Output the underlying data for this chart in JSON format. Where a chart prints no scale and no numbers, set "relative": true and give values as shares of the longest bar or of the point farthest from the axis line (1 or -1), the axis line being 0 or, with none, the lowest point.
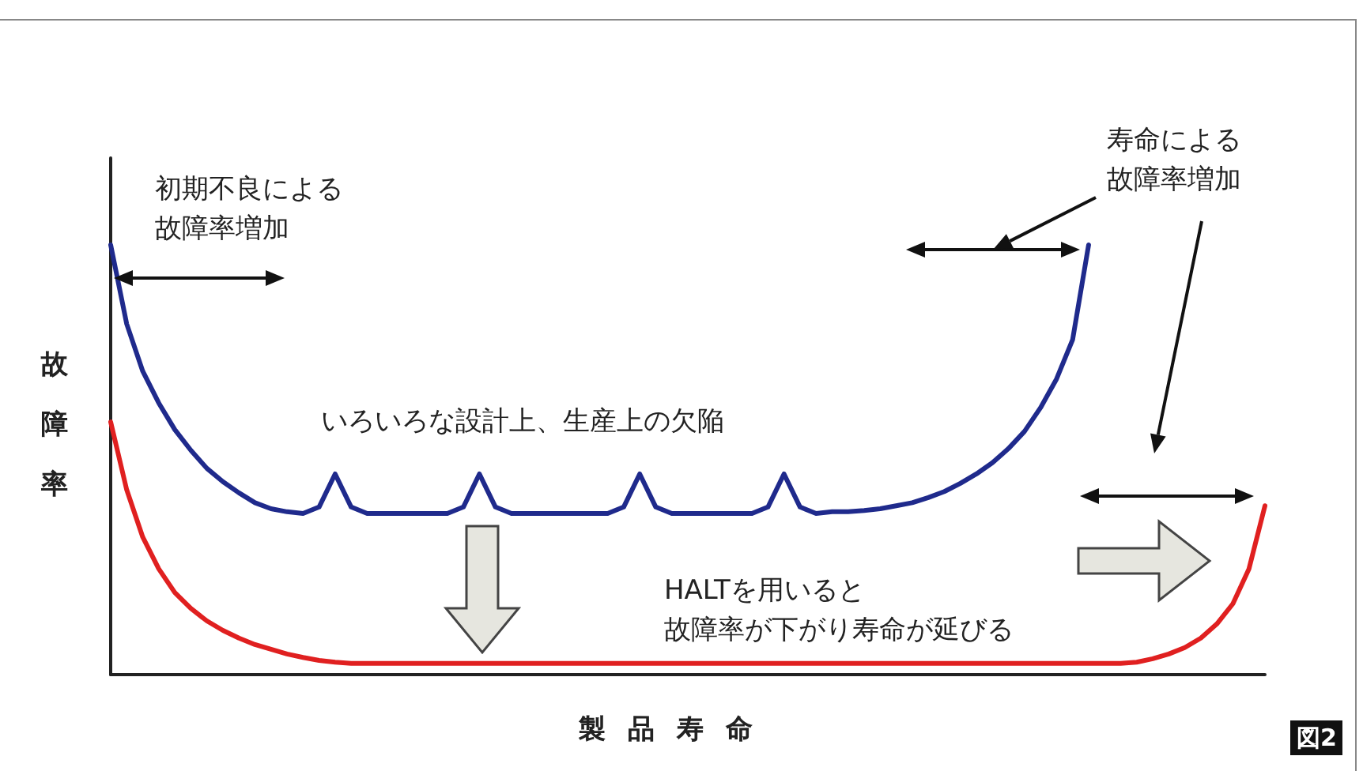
{
  "chart_data": {
    "type": "line",
    "relative": true,
    "xlabel": "製品寿命",
    "ylabel": "故障率",
    "marker": "none",
    "line_style": "solid",
    "grid": false,
    "categories": [
      null,
      null,
      null,
      null,
      null,
      null,
      null,
      null,
      null,
      null,
      null,
      null,
      null,
      null,
      null,
      null,
      null,
      null,
      null,
      null,
      null,
      null,
      null,
      null,
      null,
      null,
      null,
      null,
      null,
      null,
      null,
      null,
      null,
      null,
      null,
      null,
      null,
      null,
      null,
      null,
      null,
      null,
      null,
      null,
      null,
      null,
      null,
      null,
      null,
      null,
      null,
      null,
      null,
      null,
      null,
      null,
      null,
      null,
      null,
      null,
      null,
      null,
      null,
      null,
      null,
      null,
      null,
      null,
      null,
      null,
      null,
      null,
      null
    ],
    "series": [
      {
        "color": "#1f2a8c",
        "values": [
          1.0,
          0.816,
          0.706,
          0.632,
          0.57,
          0.522,
          0.48,
          0.449,
          0.423,
          0.4,
          0.386,
          0.379,
          0.375,
          0.39,
          0.467,
          0.39,
          0.375,
          0.375,
          0.375,
          0.375,
          0.375,
          0.375,
          0.39,
          0.467,
          0.39,
          0.375,
          0.375,
          0.375,
          0.375,
          0.375,
          0.375,
          0.375,
          0.39,
          0.467,
          0.39,
          0.375,
          0.375,
          0.375,
          0.375,
          0.375,
          0.375,
          0.39,
          0.467,
          0.39,
          0.375,
          0.379,
          0.379,
          0.382,
          0.386,
          0.393,
          0.4,
          0.412,
          0.426,
          0.445,
          0.467,
          0.493,
          0.526,
          0.566,
          0.621,
          0.688,
          0.779,
          1.0,
          null,
          null,
          null,
          null,
          null,
          null,
          null,
          null,
          null,
          null,
          null
        ]
      },
      {
        "color": "#e02020",
        "values": [
          0.588,
          0.43,
          0.32,
          0.246,
          0.191,
          0.154,
          0.125,
          0.103,
          0.085,
          0.07,
          0.059,
          0.048,
          0.04,
          0.033,
          0.029,
          0.026,
          0.026,
          0.026,
          0.026,
          0.026,
          0.026,
          0.026,
          0.026,
          0.026,
          0.026,
          0.026,
          0.026,
          0.026,
          0.026,
          0.026,
          0.026,
          0.026,
          0.026,
          0.026,
          0.026,
          0.026,
          0.026,
          0.026,
          0.026,
          0.026,
          0.026,
          0.026,
          0.026,
          0.026,
          0.026,
          0.026,
          0.026,
          0.026,
          0.026,
          0.026,
          0.026,
          0.026,
          0.026,
          0.026,
          0.026,
          0.026,
          0.026,
          0.026,
          0.026,
          0.026,
          0.026,
          0.026,
          0.026,
          0.026,
          0.029,
          0.037,
          0.048,
          0.063,
          0.085,
          0.118,
          0.165,
          0.246,
          0.393
        ]
      }
    ],
    "annotations": [
      "初期不良による故障率増加",
      "寿命による故障率増加",
      "いろいろな設計上、生産上の欠陥",
      "HALTを用いると故障率が下がり寿命が延びる",
      "図2"
    ]
  }
}
